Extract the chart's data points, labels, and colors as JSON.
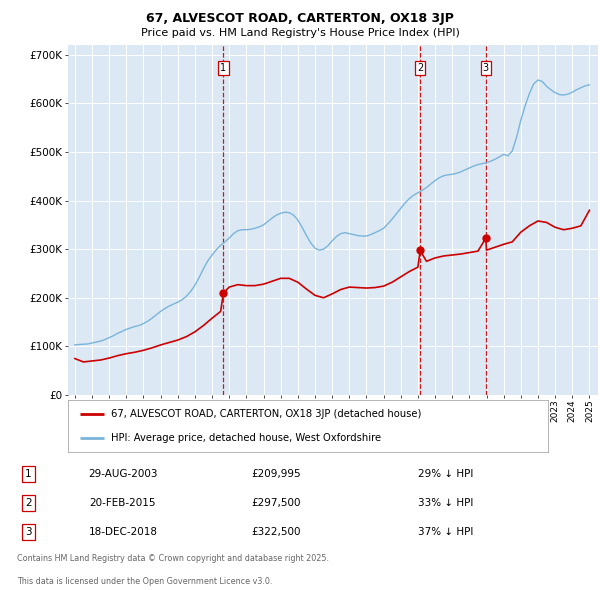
{
  "title1": "67, ALVESCOT ROAD, CARTERTON, OX18 3JP",
  "title2": "Price paid vs. HM Land Registry's House Price Index (HPI)",
  "hpi_label": "HPI: Average price, detached house, West Oxfordshire",
  "price_label": "67, ALVESCOT ROAD, CARTERTON, OX18 3JP (detached house)",
  "footer1": "Contains HM Land Registry data © Crown copyright and database right 2025.",
  "footer2": "This data is licensed under the Open Government Licence v3.0.",
  "hpi_color": "#7ab4d8",
  "price_color": "#cc0000",
  "vline_color": "#cc0000",
  "plot_bg": "#dce9f5",
  "ylim": [
    0,
    720000
  ],
  "yticks": [
    0,
    100000,
    200000,
    300000,
    400000,
    500000,
    600000,
    700000
  ],
  "ytick_labels": [
    "£0",
    "£100K",
    "£200K",
    "£300K",
    "£400K",
    "£500K",
    "£600K",
    "£700K"
  ],
  "xlim": [
    1994.6,
    2025.5
  ],
  "sales": [
    {
      "num": 1,
      "date_str": "29-AUG-2003",
      "price": 209995,
      "pct": "29%",
      "x_year": 2003.66
    },
    {
      "num": 2,
      "date_str": "20-FEB-2015",
      "price": 297500,
      "pct": "33%",
      "x_year": 2015.13
    },
    {
      "num": 3,
      "date_str": "18-DEC-2018",
      "price": 322500,
      "pct": "37%",
      "x_year": 2018.96
    }
  ],
  "hpi_data": {
    "years": [
      1995.0,
      1995.25,
      1995.5,
      1995.75,
      1996.0,
      1996.25,
      1996.5,
      1996.75,
      1997.0,
      1997.25,
      1997.5,
      1997.75,
      1998.0,
      1998.25,
      1998.5,
      1998.75,
      1999.0,
      1999.25,
      1999.5,
      1999.75,
      2000.0,
      2000.25,
      2000.5,
      2000.75,
      2001.0,
      2001.25,
      2001.5,
      2001.75,
      2002.0,
      2002.25,
      2002.5,
      2002.75,
      2003.0,
      2003.25,
      2003.5,
      2003.75,
      2004.0,
      2004.25,
      2004.5,
      2004.75,
      2005.0,
      2005.25,
      2005.5,
      2005.75,
      2006.0,
      2006.25,
      2006.5,
      2006.75,
      2007.0,
      2007.25,
      2007.5,
      2007.75,
      2008.0,
      2008.25,
      2008.5,
      2008.75,
      2009.0,
      2009.25,
      2009.5,
      2009.75,
      2010.0,
      2010.25,
      2010.5,
      2010.75,
      2011.0,
      2011.25,
      2011.5,
      2011.75,
      2012.0,
      2012.25,
      2012.5,
      2012.75,
      2013.0,
      2013.25,
      2013.5,
      2013.75,
      2014.0,
      2014.25,
      2014.5,
      2014.75,
      2015.0,
      2015.25,
      2015.5,
      2015.75,
      2016.0,
      2016.25,
      2016.5,
      2016.75,
      2017.0,
      2017.25,
      2017.5,
      2017.75,
      2018.0,
      2018.25,
      2018.5,
      2018.75,
      2019.0,
      2019.25,
      2019.5,
      2019.75,
      2020.0,
      2020.25,
      2020.5,
      2020.75,
      2021.0,
      2021.25,
      2021.5,
      2021.75,
      2022.0,
      2022.25,
      2022.5,
      2022.75,
      2023.0,
      2023.25,
      2023.5,
      2023.75,
      2024.0,
      2024.25,
      2024.5,
      2024.75,
      2025.0
    ],
    "values": [
      103000,
      104000,
      104500,
      105000,
      107000,
      109000,
      111000,
      114000,
      118000,
      122000,
      127000,
      131000,
      135000,
      138000,
      141000,
      143000,
      147000,
      152000,
      158000,
      165000,
      172000,
      178000,
      183000,
      187000,
      191000,
      196000,
      203000,
      213000,
      226000,
      242000,
      260000,
      276000,
      288000,
      299000,
      308000,
      315000,
      323000,
      332000,
      338000,
      340000,
      340000,
      341000,
      343000,
      346000,
      350000,
      357000,
      364000,
      370000,
      374000,
      376000,
      375000,
      370000,
      360000,
      345000,
      328000,
      313000,
      302000,
      298000,
      300000,
      307000,
      317000,
      326000,
      332000,
      334000,
      332000,
      330000,
      328000,
      327000,
      327000,
      330000,
      334000,
      338000,
      343000,
      352000,
      362000,
      373000,
      384000,
      395000,
      404000,
      411000,
      416000,
      421000,
      427000,
      434000,
      441000,
      447000,
      451000,
      453000,
      454000,
      456000,
      459000,
      463000,
      467000,
      471000,
      474000,
      476000,
      478000,
      481000,
      485000,
      490000,
      495000,
      492000,
      502000,
      530000,
      565000,
      595000,
      620000,
      640000,
      648000,
      645000,
      635000,
      628000,
      622000,
      618000,
      617000,
      619000,
      623000,
      628000,
      632000,
      636000,
      638000
    ]
  },
  "price_data": {
    "years": [
      1995.0,
      1995.5,
      1996.0,
      1996.5,
      1997.0,
      1997.5,
      1998.0,
      1998.5,
      1999.0,
      1999.5,
      2000.0,
      2000.5,
      2001.0,
      2001.5,
      2002.0,
      2002.5,
      2003.0,
      2003.5,
      2003.66,
      2004.0,
      2004.5,
      2005.0,
      2005.5,
      2006.0,
      2006.5,
      2007.0,
      2007.5,
      2008.0,
      2008.5,
      2009.0,
      2009.5,
      2010.0,
      2010.5,
      2011.0,
      2011.5,
      2012.0,
      2012.5,
      2013.0,
      2013.5,
      2014.0,
      2014.5,
      2015.0,
      2015.13,
      2015.5,
      2016.0,
      2016.5,
      2017.0,
      2017.5,
      2018.0,
      2018.5,
      2018.96,
      2019.0,
      2019.5,
      2020.0,
      2020.5,
      2021.0,
      2021.5,
      2022.0,
      2022.5,
      2023.0,
      2023.5,
      2024.0,
      2024.5,
      2025.0
    ],
    "values": [
      75000,
      68000,
      70000,
      72000,
      76000,
      81000,
      85000,
      88000,
      92000,
      97000,
      103000,
      108000,
      113000,
      120000,
      130000,
      143000,
      158000,
      172000,
      209995,
      222000,
      227000,
      225000,
      225000,
      228000,
      234000,
      240000,
      240000,
      232000,
      218000,
      205000,
      200000,
      208000,
      217000,
      222000,
      221000,
      220000,
      221000,
      224000,
      232000,
      243000,
      254000,
      263000,
      297500,
      275000,
      282000,
      286000,
      288000,
      290000,
      293000,
      296000,
      322500,
      298000,
      304000,
      310000,
      315000,
      335000,
      348000,
      358000,
      355000,
      345000,
      340000,
      343000,
      348000,
      380000
    ]
  }
}
